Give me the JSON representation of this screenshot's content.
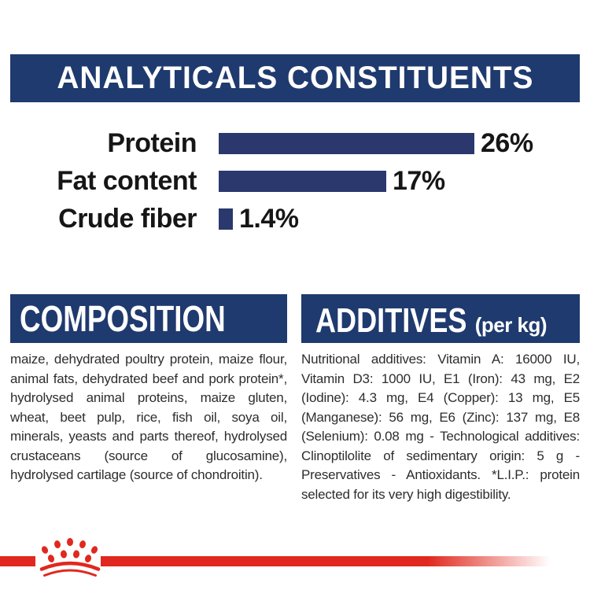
{
  "colors": {
    "navy": "#1f3a6e",
    "bar_navy": "#2b386e",
    "red": "#e0281e",
    "text": "#2d2d30"
  },
  "analyticals": {
    "title": "ANALYTICALS CONSTITUENTS",
    "rows": [
      {
        "label": "Protein",
        "value": "26%",
        "percent": 26
      },
      {
        "label": "Fat content",
        "value": "17%",
        "percent": 17
      },
      {
        "label": "Crude fiber",
        "value": "1.4%",
        "percent": 1.4
      }
    ]
  },
  "chart_data": {
    "type": "bar",
    "orientation": "horizontal",
    "categories": [
      "Protein",
      "Fat content",
      "Crude fiber"
    ],
    "values": [
      26,
      17,
      1.4
    ],
    "unit": "%",
    "title": "ANALYTICALS CONSTITUENTS",
    "xlabel": "",
    "ylabel": "",
    "data_labels": [
      "26%",
      "17%",
      "1.4%"
    ],
    "bar_color": "#2b386e"
  },
  "composition": {
    "title": "COMPOSITION",
    "body": "maize, dehydrated poultry protein, maize flour, animal fats, dehydrated beef and pork protein*, hydrolysed animal proteins, maize gluten, wheat, beet pulp, rice, fish oil, soya oil, minerals, yeasts and parts thereof, hydrolysed crustaceans (source of glucosamine), hydrolysed cartilage (source of chondroitin)."
  },
  "additives": {
    "title": "ADDITIVES",
    "title_suffix": "(per kg)",
    "body": "Nutritional additives: Vitamin A: 16000 IU, Vitamin D3: 1000 IU, E1 (Iron): 43 mg, E2 (Iodine): 4.3 mg, E4 (Copper): 13 mg, E5 (Manganese): 56 mg, E6 (Zinc): 137 mg, E8 (Selenium): 0.08 mg - Technological additives: Clinoptilolite of sedimentary origin: 5 g - Preservatives - Antioxidants. *L.I.P.: protein selected for its very high digestibility."
  },
  "footer": {
    "logo": "Royal Canin crown"
  }
}
